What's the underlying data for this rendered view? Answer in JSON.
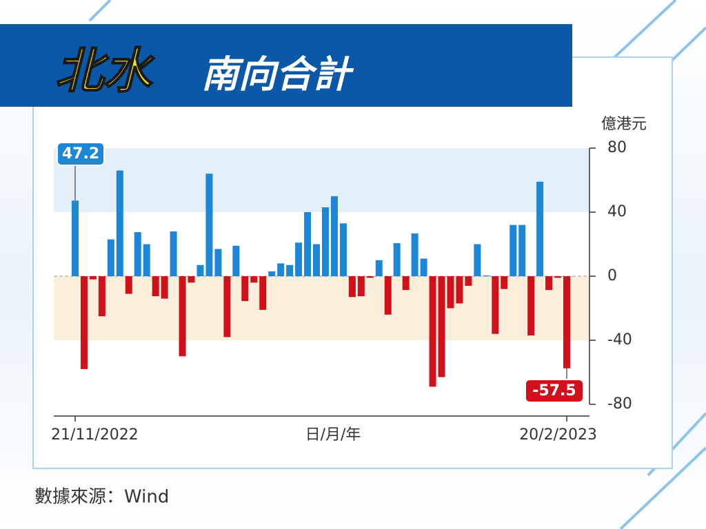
{
  "chart_data": {
    "type": "bar",
    "title": "北水",
    "subtitle": "南向合計",
    "y_label": "億港元",
    "x_label": "日/月/年",
    "source": "數據來源：Wind",
    "categories": [
      "21/11/2022",
      null,
      null,
      null,
      null,
      null,
      null,
      null,
      null,
      null,
      null,
      null,
      null,
      null,
      null,
      null,
      null,
      null,
      null,
      null,
      null,
      null,
      null,
      null,
      null,
      null,
      null,
      null,
      null,
      null,
      null,
      null,
      null,
      null,
      null,
      null,
      null,
      null,
      null,
      null,
      null,
      null,
      null,
      null,
      null,
      null,
      null,
      null,
      null,
      null,
      null,
      null,
      null,
      null,
      null,
      "20/2/2023"
    ],
    "values": [
      47.2,
      -58,
      -2,
      -25,
      23,
      66,
      -11,
      27.5,
      20,
      -12.5,
      -14,
      28,
      -50,
      -4,
      7,
      64,
      17,
      -38,
      19,
      -15.5,
      -4,
      -21,
      3,
      8,
      7,
      21,
      40,
      20,
      43,
      50,
      33,
      -13,
      -12.5,
      -1,
      10,
      -24,
      20.6,
      -8.6,
      26.7,
      11,
      -69,
      -63,
      -20,
      -17,
      -6,
      20,
      0.5,
      -36,
      -8,
      32,
      32,
      -37,
      59,
      -8.6,
      -1,
      -57.5
    ],
    "positive_color": "#1b87d6",
    "negative_color": "#d0111b",
    "ylim": [
      -80,
      80
    ],
    "yticks": [
      -80,
      -40,
      0,
      40,
      80
    ]
  }
}
